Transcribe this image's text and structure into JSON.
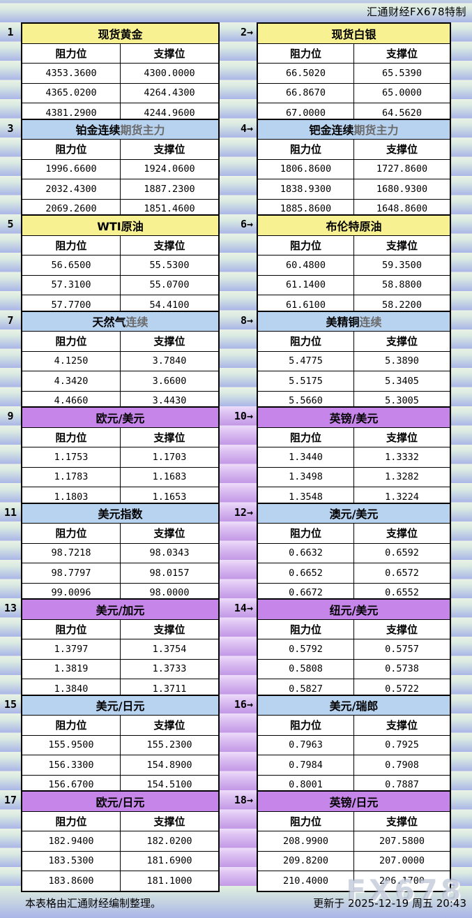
{
  "header": {
    "source_label": "汇通财经FX678特制"
  },
  "columns": {
    "resistance": "阻力位",
    "support": "支撑位"
  },
  "chart_data": {
    "type": "table",
    "title": "汇通财经FX678特制",
    "column_headers": [
      "阻力位",
      "支撑位"
    ],
    "panels": [
      {
        "label": "1",
        "title": "现货黄金",
        "theme": "yellow",
        "rows": [
          [
            "4353.3600",
            "4300.0000"
          ],
          [
            "4365.0200",
            "4264.4300"
          ],
          [
            "4381.2900",
            "4244.9600"
          ]
        ]
      },
      {
        "label": "2→",
        "title": "现货白银",
        "theme": "yellow",
        "rows": [
          [
            "66.5020",
            "65.5390"
          ],
          [
            "66.8670",
            "65.0000"
          ],
          [
            "67.0000",
            "64.5620"
          ]
        ]
      },
      {
        "label": "3",
        "title": "铂金连续",
        "title_sub": "期货主力",
        "theme": "blue",
        "rows": [
          [
            "1996.6600",
            "1924.0600"
          ],
          [
            "2032.4300",
            "1887.2300"
          ],
          [
            "2069.2600",
            "1851.4600"
          ]
        ]
      },
      {
        "label": "4→",
        "title": "钯金连续",
        "title_sub": "期货主力",
        "theme": "blue",
        "rows": [
          [
            "1806.8600",
            "1727.8600"
          ],
          [
            "1838.9300",
            "1680.9300"
          ],
          [
            "1885.8600",
            "1648.8600"
          ]
        ]
      },
      {
        "label": "5",
        "title": "WTI原油",
        "theme": "yellow",
        "rows": [
          [
            "56.6500",
            "55.5300"
          ],
          [
            "57.3100",
            "55.0700"
          ],
          [
            "57.7700",
            "54.4100"
          ]
        ]
      },
      {
        "label": "6→",
        "title": "布伦特原油",
        "theme": "yellow",
        "rows": [
          [
            "60.4800",
            "59.3500"
          ],
          [
            "61.1400",
            "58.8800"
          ],
          [
            "61.6100",
            "58.2200"
          ]
        ]
      },
      {
        "label": "7",
        "title": "天然气",
        "title_sub": "连续",
        "theme": "blue",
        "rows": [
          [
            "4.1250",
            "3.7840"
          ],
          [
            "4.3420",
            "3.6600"
          ],
          [
            "4.4660",
            "3.4430"
          ]
        ]
      },
      {
        "label": "8→",
        "title": "美精铜",
        "title_sub": "连续",
        "theme": "blue",
        "rows": [
          [
            "5.4775",
            "5.3890"
          ],
          [
            "5.5175",
            "5.3405"
          ],
          [
            "5.5660",
            "5.3005"
          ]
        ]
      },
      {
        "label": "9",
        "title": "欧元/美元",
        "theme": "purple",
        "rows": [
          [
            "1.1753",
            "1.1703"
          ],
          [
            "1.1783",
            "1.1683"
          ],
          [
            "1.1803",
            "1.1653"
          ]
        ]
      },
      {
        "label": "10→",
        "title": "英镑/美元",
        "theme": "purple",
        "rows": [
          [
            "1.3440",
            "1.3332"
          ],
          [
            "1.3498",
            "1.3282"
          ],
          [
            "1.3548",
            "1.3224"
          ]
        ]
      },
      {
        "label": "11",
        "title": "美元指数",
        "theme": "blue",
        "rows": [
          [
            "98.7218",
            "98.0343"
          ],
          [
            "98.7797",
            "98.0157"
          ],
          [
            "99.0096",
            "98.0000"
          ]
        ]
      },
      {
        "label": "12→",
        "title": "澳元/美元",
        "theme": "blue",
        "rows": [
          [
            "0.6632",
            "0.6592"
          ],
          [
            "0.6652",
            "0.6572"
          ],
          [
            "0.6672",
            "0.6552"
          ]
        ]
      },
      {
        "label": "13",
        "title": "美元/加元",
        "theme": "purple",
        "rows": [
          [
            "1.3797",
            "1.3754"
          ],
          [
            "1.3819",
            "1.3733"
          ],
          [
            "1.3840",
            "1.3711"
          ]
        ]
      },
      {
        "label": "14→",
        "title": "纽元/美元",
        "theme": "purple",
        "rows": [
          [
            "0.5792",
            "0.5757"
          ],
          [
            "0.5808",
            "0.5738"
          ],
          [
            "0.5827",
            "0.5722"
          ]
        ]
      },
      {
        "label": "15",
        "title": "美元/日元",
        "theme": "blue",
        "rows": [
          [
            "155.9500",
            "155.2300"
          ],
          [
            "156.3300",
            "154.8900"
          ],
          [
            "156.6700",
            "154.5100"
          ]
        ]
      },
      {
        "label": "16→",
        "title": "美元/瑞郎",
        "theme": "blue",
        "rows": [
          [
            "0.7963",
            "0.7925"
          ],
          [
            "0.7984",
            "0.7908"
          ],
          [
            "0.8001",
            "0.7887"
          ]
        ]
      },
      {
        "label": "17",
        "title": "欧元/日元",
        "theme": "purple",
        "rows": [
          [
            "182.9400",
            "182.0200"
          ],
          [
            "183.5300",
            "181.6900"
          ],
          [
            "183.8600",
            "181.1000"
          ]
        ]
      },
      {
        "label": "18→",
        "title": "英镑/日元",
        "theme": "purple",
        "rows": [
          [
            "208.9900",
            "207.5800"
          ],
          [
            "209.8200",
            "207.0000"
          ],
          [
            "210.4000",
            "206.1700"
          ]
        ]
      }
    ]
  },
  "footer": {
    "left": "本表格由汇通财经编制整理。",
    "right": "更新于 2025-12-19 周五 20:43",
    "watermark": "FX678"
  },
  "colors": {
    "theme_yellow": "#f8f192",
    "theme_blue": "#b7d3f0",
    "theme_purple": "#c685e9",
    "band_light": "#eaf2e5",
    "band_dark": "#aab6e7",
    "purple_band_light": "#eeddfa",
    "purple_band_dark": "#c298e6",
    "cell_background": "#ffffff",
    "border": "#000000"
  }
}
